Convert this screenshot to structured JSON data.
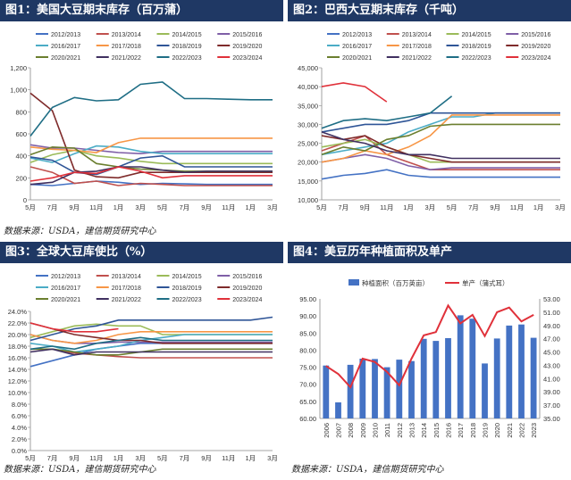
{
  "series_names": [
    "2012/2013",
    "2013/2014",
    "2014/2015",
    "2015/2016",
    "2016/2017",
    "2017/2018",
    "2018/2019",
    "2019/2020",
    "2020/2021",
    "2021/2022",
    "2022/2023",
    "2023/2024"
  ],
  "series_colors": [
    "#4472c4",
    "#c0504d",
    "#9bbb59",
    "#7f5fa7",
    "#4bacc6",
    "#f79646",
    "#2f5597",
    "#7f2b2b",
    "#6b7f2f",
    "#403060",
    "#1f6e85",
    "#e0313a"
  ],
  "panels": [
    {
      "title": "图1：美国大豆期末库存（百万蒲）",
      "source": "数据来源：USDA，建信期货研究中心",
      "chart_data": {
        "type": "line",
        "x": [
          "5月",
          "7月",
          "9月",
          "11月",
          "1月",
          "3月",
          "5月",
          "7月",
          "9月",
          "11月",
          "1月",
          "3月"
        ],
        "ylim": [
          0,
          1200
        ],
        "yticks": [
          "0",
          "200",
          "400",
          "600",
          "800",
          "1,000",
          "1,200"
        ],
        "series": [
          {
            "name": "2012/2013",
            "values": [
              140,
              130,
              150,
              170,
              160,
              140,
              150,
              145,
              140,
              140,
              140,
              140
            ]
          },
          {
            "name": "2013/2014",
            "values": [
              300,
              250,
              150,
              170,
              130,
              150,
              140,
              130,
              130,
              130,
              130,
              130
            ]
          },
          {
            "name": "2014/2015",
            "values": [
              340,
              410,
              450,
              400,
              380,
              350,
              330,
              330,
              330,
              330,
              330,
              330
            ]
          },
          {
            "name": "2015/2016",
            "values": [
              500,
              470,
              470,
              450,
              430,
              420,
              440,
              440,
              440,
              440,
              440,
              440
            ]
          },
          {
            "name": "2016/2017",
            "values": [
              380,
              340,
              420,
              490,
              480,
              440,
              420,
              420,
              420,
              420,
              420,
              420
            ]
          },
          {
            "name": "2017/2018",
            "values": [
              480,
              460,
              450,
              430,
              520,
              560,
              560,
              560,
              560,
              560,
              560,
              560
            ]
          },
          {
            "name": "2018/2019",
            "values": [
              390,
              360,
              250,
              230,
              300,
              380,
              400,
              300,
              300,
              300,
              300,
              300
            ]
          },
          {
            "name": "2019/2020",
            "values": [
              970,
              810,
              270,
              210,
              200,
              250,
              250,
              250,
              250,
              250,
              250,
              250
            ]
          },
          {
            "name": "2020/2021",
            "values": [
              410,
              480,
              470,
              330,
              300,
              280,
              270,
              260,
              260,
              260,
              260,
              260
            ]
          },
          {
            "name": "2021/2022",
            "values": [
              140,
              160,
              250,
              260,
              300,
              300,
              270,
              250,
              260,
              260,
              260,
              260
            ]
          },
          {
            "name": "2022/2023",
            "values": [
              580,
              840,
              930,
              900,
              910,
              1050,
              1070,
              920,
              920,
              915,
              910,
              910
            ]
          },
          {
            "name": "2023/2024",
            "values": [
              170,
              200,
              250,
              240,
              300,
              260,
              200,
              220,
              220,
              220,
              220,
              220
            ]
          }
        ]
      }
    },
    {
      "title": "图2：巴西大豆期末库存（千吨）",
      "source": "",
      "chart_data": {
        "type": "line",
        "x": [
          "5月",
          "7月",
          "9月",
          "11月",
          "1月",
          "3月",
          "5月",
          "7月",
          "9月",
          "11月",
          "1月",
          "3月"
        ],
        "ylim": [
          10000,
          45000
        ],
        "yticks": [
          "10,000",
          "15,000",
          "20,000",
          "25,000",
          "30,000",
          "35,000",
          "40,000",
          "45,000"
        ],
        "series": [
          {
            "name": "2012/2013",
            "values": [
              15500,
              16500,
              17000,
              18000,
              16500,
              16000,
              16000,
              16000,
              16000,
              16000,
              16000,
              16000
            ]
          },
          {
            "name": "2013/2014",
            "values": [
              23000,
              25000,
              27000,
              22000,
              20000,
              18000,
              18000,
              18000,
              18000,
              18000,
              18000,
              18000
            ]
          },
          {
            "name": "2014/2015",
            "values": [
              24000,
              25000,
              26000,
              24000,
              22000,
              20000,
              20000,
              20000,
              20000,
              20000,
              20000,
              20000
            ]
          },
          {
            "name": "2015/2016",
            "values": [
              20000,
              21000,
              22000,
              21000,
              19000,
              18000,
              18500,
              18500,
              18500,
              18500,
              18500,
              18500
            ]
          },
          {
            "name": "2016/2017",
            "values": [
              22000,
              23000,
              24000,
              25000,
              28000,
              30000,
              32000,
              32000,
              33000,
              33000,
              33000,
              33000
            ]
          },
          {
            "name": "2017/2018",
            "values": [
              20000,
              21000,
              23000,
              22000,
              24000,
              27000,
              32500,
              32500,
              32500,
              32500,
              32500,
              32500
            ]
          },
          {
            "name": "2018/2019",
            "values": [
              28000,
              29000,
              30000,
              30000,
              31000,
              33000,
              33000,
              33000,
              33000,
              33000,
              33000,
              33000
            ]
          },
          {
            "name": "2019/2020",
            "values": [
              27000,
              26000,
              27000,
              24000,
              22000,
              21000,
              20000,
              20000,
              20000,
              20000,
              20000,
              20000
            ]
          },
          {
            "name": "2020/2021",
            "values": [
              22000,
              24000,
              23000,
              26000,
              27000,
              29500,
              30000,
              30000,
              30000,
              30000,
              30000,
              30000
            ]
          },
          {
            "name": "2021/2022",
            "values": [
              28000,
              26000,
              25000,
              23000,
              22000,
              22000,
              21000,
              21000,
              21000,
              21000,
              21000,
              21000
            ]
          },
          {
            "name": "2022/2023",
            "values": [
              29000,
              31000,
              31500,
              31000,
              32000,
              33000,
              37500,
              null,
              null,
              null,
              null,
              null
            ]
          },
          {
            "name": "2023/2024",
            "values": [
              40000,
              41000,
              40000,
              36000,
              null,
              null,
              null,
              null,
              null,
              null,
              null,
              null
            ]
          }
        ]
      }
    },
    {
      "title": "图3：全球大豆库使比（%）",
      "source": "数据来源：USDA，建信期货研究中心",
      "chart_data": {
        "type": "line",
        "x": [
          "5月",
          "7月",
          "9月",
          "11月",
          "1月",
          "3月",
          "5月",
          "7月",
          "9月",
          "11月",
          "1月",
          "3月"
        ],
        "ylim": [
          0,
          24
        ],
        "yticks": [
          "0.0%",
          "2.0%",
          "4.0%",
          "6.0%",
          "8.0%",
          "10.0%",
          "12.0%",
          "14.0%",
          "16.0%",
          "18.0%",
          "20.0%",
          "22.0%",
          "24.0%"
        ],
        "series": [
          {
            "name": "2012/2013",
            "values": [
              14.5,
              15.5,
              16.5,
              17.5,
              18,
              18.5,
              18.5,
              18.5,
              18.5,
              18.5,
              18.5,
              18.5
            ]
          },
          {
            "name": "2013/2014",
            "values": [
              17.5,
              17.5,
              16.8,
              16.5,
              16.2,
              16,
              16,
              16,
              16,
              16,
              16,
              16
            ]
          },
          {
            "name": "2014/2015",
            "values": [
              19.5,
              20.5,
              21.5,
              21.8,
              21.5,
              21.5,
              20,
              20,
              20,
              20,
              20,
              20
            ]
          },
          {
            "name": "2015/2016",
            "values": [
              20,
              19,
              18.5,
              18.5,
              18.7,
              18.7,
              18.7,
              18.7,
              18.7,
              18.7,
              18.7,
              18.7
            ]
          },
          {
            "name": "2016/2017",
            "values": [
              18.5,
              18,
              17,
              17.5,
              18,
              19,
              19.5,
              20,
              20,
              20,
              20,
              20
            ]
          },
          {
            "name": "2017/2018",
            "values": [
              20,
              19,
              18.5,
              19,
              20,
              20.5,
              20.5,
              20.5,
              20.5,
              20.5,
              20.5,
              20.5
            ]
          },
          {
            "name": "2018/2019",
            "values": [
              19,
              20,
              21,
              21.5,
              22.5,
              22.5,
              22.5,
              22.5,
              22.5,
              22.5,
              22.5,
              23
            ]
          },
          {
            "name": "2019/2020",
            "values": [
              22,
              21,
              20,
              19.5,
              19,
              19,
              18.5,
              18.5,
              18.5,
              18.5,
              18.5,
              18.5
            ]
          },
          {
            "name": "2020/2021",
            "values": [
              17.5,
              17.5,
              17,
              16.5,
              16.5,
              17,
              17.5,
              17.5,
              17.5,
              17.5,
              17.5,
              17.5
            ]
          },
          {
            "name": "2021/2022",
            "values": [
              17,
              17.5,
              16.5,
              17,
              17,
              17,
              17,
              17,
              17,
              17,
              17,
              17
            ]
          },
          {
            "name": "2022/2023",
            "values": [
              17.5,
              18,
              17.5,
              18.5,
              19,
              19.5,
              19,
              19,
              19,
              19,
              19,
              19
            ]
          },
          {
            "name": "2023/2024",
            "values": [
              22,
              21,
              20.5,
              20.5,
              21,
              null,
              null,
              null,
              null,
              null,
              null,
              null
            ]
          }
        ]
      }
    },
    {
      "title": "图4：美豆历年种植面积及单产",
      "source": "数据来源：USDA，建信期货研究中心",
      "chart_data": {
        "type": "bar",
        "categories": [
          "2006",
          "2007",
          "2008",
          "2009",
          "2010",
          "2011",
          "2012",
          "2013",
          "2014",
          "2015",
          "2016",
          "2017",
          "2018",
          "2019",
          "2020",
          "2021",
          "2022",
          "2023"
        ],
        "left_ylim": [
          60,
          95
        ],
        "right_ylim": [
          35,
          53
        ],
        "left_yticks": [
          "60.00",
          "65.00",
          "70.00",
          "75.00",
          "80.00",
          "85.00",
          "90.00",
          "95.00"
        ],
        "right_yticks": [
          "35.00",
          "37.00",
          "39.00",
          "41.00",
          "43.00",
          "45.00",
          "47.00",
          "49.00",
          "51.00",
          "53.00"
        ],
        "series": [
          {
            "name": "种植面积（百万英亩）",
            "type": "bar",
            "values": [
              75.5,
              64.7,
              75.7,
              77.5,
              77.4,
              75.0,
              77.2,
              76.8,
              83.3,
              82.7,
              83.5,
              90.2,
              89.2,
              76.1,
              83.4,
              87.2,
              87.5,
              83.6
            ]
          },
          {
            "name": "单产（蒲式耳）",
            "type": "line",
            "values": [
              42.9,
              41.7,
              39.7,
              44.0,
              43.5,
              42.0,
              40.0,
              44.0,
              47.5,
              48.0,
              52.0,
              49.3,
              50.6,
              47.4,
              51.0,
              51.7,
              49.6,
              50.6
            ]
          }
        ],
        "bar_color": "#4472c4",
        "line_color": "#e0313a"
      }
    }
  ]
}
